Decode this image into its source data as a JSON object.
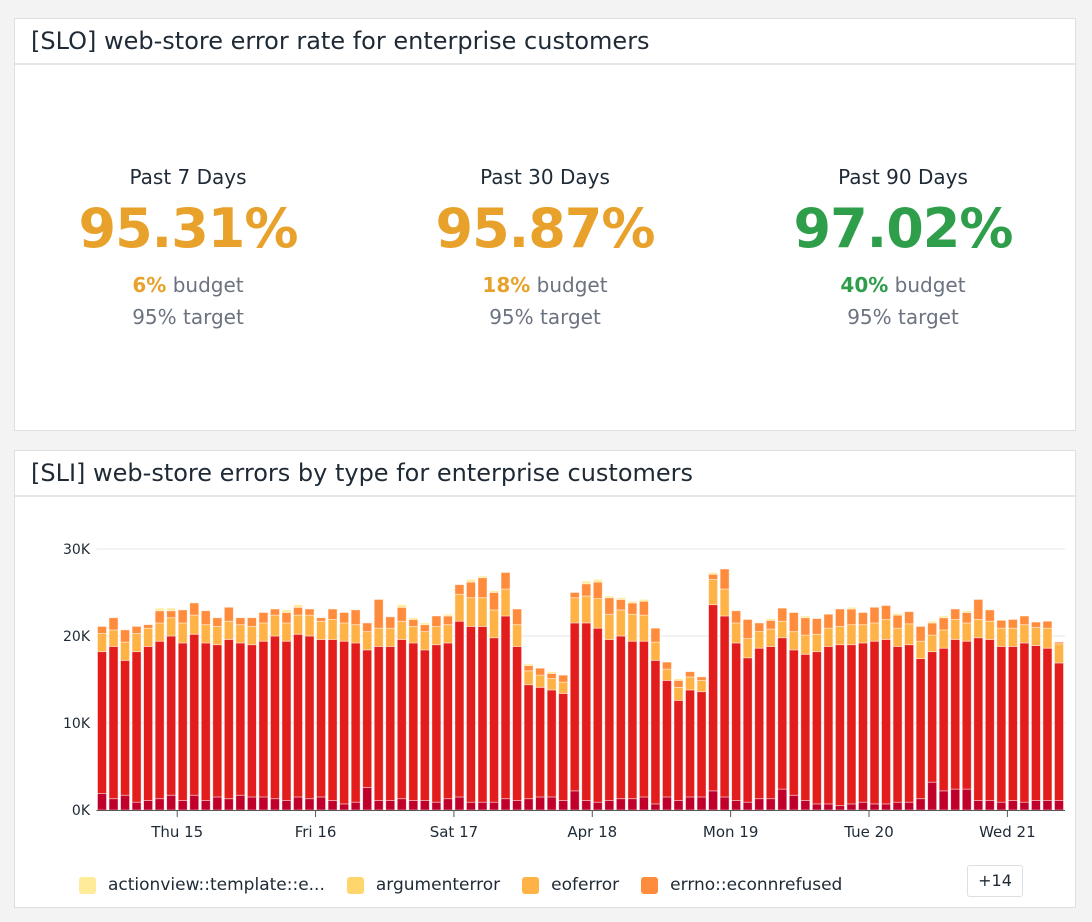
{
  "slo_panel": {
    "title": "[SLO] web-store error rate for enterprise customers",
    "stats": [
      {
        "label": "Past 7 Days",
        "value": "95.31%",
        "budget_value": "6%",
        "budget_label": "budget",
        "target": "95% target",
        "color": "#e8a22c"
      },
      {
        "label": "Past 30 Days",
        "value": "95.87%",
        "budget_value": "18%",
        "budget_label": "budget",
        "target": "95% target",
        "color": "#e8a22c"
      },
      {
        "label": "Past 90 Days",
        "value": "97.02%",
        "budget_value": "40%",
        "budget_label": "budget",
        "target": "95% target",
        "color": "#2f9e4b"
      }
    ]
  },
  "sli_panel": {
    "title": "[SLI] web-store errors by type for enterprise customers",
    "legend": [
      {
        "name": "actionview::template::e...",
        "color": "#ffeb99"
      },
      {
        "name": "argumenterror",
        "color": "#ffd66b"
      },
      {
        "name": "eoferror",
        "color": "#ffb347"
      },
      {
        "name": "errno::econnrefused",
        "color": "#ff8c3c"
      }
    ],
    "more_label": "+14"
  },
  "chart_data": {
    "type": "bar",
    "stacked": true,
    "ylim": [
      0,
      30
    ],
    "y_unit": "K",
    "yticks": [
      {
        "value": 0,
        "label": "0K"
      },
      {
        "value": 10,
        "label": "10K"
      },
      {
        "value": 20,
        "label": "20K"
      },
      {
        "value": 30,
        "label": "30K"
      }
    ],
    "grid": true,
    "legend_position": "bottom",
    "xticks": [
      {
        "label": "Thu 15",
        "x": "Apr 15 00:00"
      },
      {
        "label": "Fri 16",
        "x": "Apr 16 00:00"
      },
      {
        "label": "Sat 17",
        "x": "Apr 17 00:00"
      },
      {
        "label": "Apr 18",
        "x": "Apr 18 00:00"
      },
      {
        "label": "Mon 19",
        "x": "Apr 19 00:00"
      },
      {
        "label": "Tue 20",
        "x": "Apr 20 00:00"
      },
      {
        "label": "Wed 21",
        "x": "Apr 21 00:00"
      }
    ],
    "x": [
      "Apr 14 10:00",
      "Apr 14 12:00",
      "Apr 14 14:00",
      "Apr 14 16:00",
      "Apr 14 18:00",
      "Apr 14 20:00",
      "Apr 14 22:00",
      "Apr 15 00:00",
      "Apr 15 02:00",
      "Apr 15 04:00",
      "Apr 15 06:00",
      "Apr 15 08:00",
      "Apr 15 10:00",
      "Apr 15 12:00",
      "Apr 15 14:00",
      "Apr 15 16:00",
      "Apr 15 18:00",
      "Apr 15 20:00",
      "Apr 15 22:00",
      "Apr 16 00:00",
      "Apr 16 02:00",
      "Apr 16 04:00",
      "Apr 16 06:00",
      "Apr 16 08:00",
      "Apr 16 10:00",
      "Apr 16 12:00",
      "Apr 16 14:00",
      "Apr 16 16:00",
      "Apr 16 18:00",
      "Apr 16 20:00",
      "Apr 16 22:00",
      "Apr 17 00:00",
      "Apr 17 02:00",
      "Apr 17 04:00",
      "Apr 17 06:00",
      "Apr 17 08:00",
      "Apr 17 10:00",
      "Apr 17 12:00",
      "Apr 17 14:00",
      "Apr 17 16:00",
      "Apr 17 18:00",
      "Apr 17 20:00",
      "Apr 17 22:00",
      "Apr 18 00:00",
      "Apr 18 02:00",
      "Apr 18 04:00",
      "Apr 18 06:00",
      "Apr 18 08:00",
      "Apr 18 10:00",
      "Apr 18 12:00",
      "Apr 18 14:00",
      "Apr 18 16:00",
      "Apr 18 18:00",
      "Apr 18 20:00",
      "Apr 18 22:00",
      "Apr 19 00:00",
      "Apr 19 02:00",
      "Apr 19 04:00",
      "Apr 19 06:00",
      "Apr 19 08:00",
      "Apr 19 10:00",
      "Apr 19 12:00",
      "Apr 19 14:00",
      "Apr 19 16:00",
      "Apr 19 18:00",
      "Apr 19 20:00",
      "Apr 19 22:00",
      "Apr 20 00:00",
      "Apr 20 02:00",
      "Apr 20 04:00",
      "Apr 20 06:00",
      "Apr 20 08:00",
      "Apr 20 10:00",
      "Apr 20 12:00",
      "Apr 20 14:00",
      "Apr 20 16:00",
      "Apr 20 18:00",
      "Apr 20 20:00",
      "Apr 20 22:00",
      "Apr 21 00:00",
      "Apr 21 02:00",
      "Apr 21 04:00",
      "Apr 21 06:00",
      "Apr 21 08:00"
    ],
    "series": [
      {
        "color": "#c0002a",
        "values": [
          1.9,
          1.3,
          1.7,
          0.9,
          1.1,
          1.3,
          1.7,
          1.1,
          1.7,
          1.1,
          1.5,
          1.3,
          1.7,
          1.5,
          1.5,
          1.3,
          1.1,
          1.5,
          1.3,
          1.5,
          1.1,
          0.7,
          0.9,
          2.6,
          1.1,
          1.1,
          1.3,
          1.1,
          1.1,
          0.9,
          1.3,
          1.5,
          0.9,
          0.9,
          0.9,
          1.3,
          1.1,
          1.3,
          1.5,
          1.5,
          1.1,
          2.2,
          1.1,
          0.9,
          1.1,
          1.3,
          1.3,
          1.5,
          0.7,
          1.5,
          1.1,
          1.5,
          1.5,
          2.2,
          1.5,
          1.1,
          0.9,
          1.3,
          1.3,
          2.4,
          1.7,
          1.1,
          0.7,
          0.7,
          0.5,
          0.7,
          0.9,
          0.7,
          0.7,
          0.9,
          0.9,
          1.3,
          3.2,
          2.2,
          2.4,
          2.4,
          1.1,
          1.1,
          0.9,
          1.1,
          0.9,
          1.1,
          1.1,
          1.1
        ]
      },
      {
        "color": "#e31c1c",
        "values": [
          16.3,
          17.5,
          15.5,
          17.3,
          17.7,
          18.1,
          18.3,
          18.1,
          18.5,
          18.1,
          17.5,
          18.3,
          17.5,
          17.5,
          17.9,
          18.7,
          18.3,
          18.7,
          18.7,
          18.1,
          18.5,
          18.7,
          18.3,
          15.8,
          17.7,
          17.7,
          18.3,
          18.1,
          17.3,
          18.1,
          17.9,
          20.2,
          20.2,
          20.2,
          18.9,
          21.0,
          17.7,
          13.1,
          12.6,
          12.3,
          12.3,
          19.3,
          20.4,
          20.0,
          18.5,
          18.7,
          18.1,
          17.9,
          16.5,
          13.4,
          11.5,
          12.3,
          12.1,
          21.4,
          20.8,
          18.1,
          16.6,
          17.3,
          17.5,
          17.4,
          16.7,
          16.8,
          17.5,
          18.1,
          18.5,
          18.3,
          18.3,
          18.7,
          18.9,
          17.9,
          18.1,
          16.1,
          15.0,
          16.4,
          17.2,
          17.0,
          18.7,
          18.5,
          17.9,
          17.7,
          18.3,
          17.8,
          17.5,
          15.8
        ]
      },
      {
        "name": "eoferror",
        "color": "#ffb347",
        "values": [
          2.1,
          1.9,
          2.1,
          2.1,
          2.1,
          2.1,
          2.1,
          2.3,
          2.2,
          2.1,
          2.1,
          2.1,
          2.1,
          2.1,
          2.1,
          2.4,
          2.1,
          2.2,
          2.4,
          2.1,
          2.3,
          2.1,
          2.1,
          2.1,
          2.1,
          2.1,
          2.1,
          1.9,
          2.1,
          2.1,
          2.1,
          3.1,
          3.3,
          3.3,
          3.2,
          3.1,
          2.5,
          1.6,
          1.4,
          1.3,
          1.3,
          2.9,
          3.1,
          3.4,
          2.9,
          3.0,
          3.1,
          3.0,
          2.1,
          1.3,
          1.5,
          1.5,
          1.3,
          2.9,
          3.1,
          2.3,
          2.2,
          1.9,
          2.0,
          1.9,
          2.1,
          2.2,
          2.0,
          2.1,
          2.1,
          2.3,
          2.1,
          2.1,
          2.3,
          2.1,
          2.4,
          2.0,
          1.9,
          2.1,
          2.3,
          2.1,
          2.1,
          2.1,
          2.1,
          2.1,
          2.1,
          2.1,
          2.3,
          2.2
        ]
      },
      {
        "name": "errno::econnrefused",
        "color": "#ff8c3c",
        "values": [
          0.8,
          1.4,
          1.4,
          0.8,
          0.4,
          1.4,
          0.8,
          1.5,
          1.4,
          1.6,
          1.0,
          1.6,
          0.8,
          1.0,
          1.2,
          0.7,
          1.2,
          0.9,
          0.7,
          0.4,
          1.2,
          1.2,
          1.7,
          1.0,
          3.3,
          1.3,
          1.6,
          0.8,
          0.8,
          1.2,
          1.0,
          1.1,
          1.8,
          2.3,
          2.0,
          1.9,
          1.8,
          0.6,
          0.8,
          0.6,
          0.8,
          0.6,
          1.4,
          1.9,
          1.9,
          1.2,
          1.3,
          1.6,
          1.6,
          0.8,
          0.8,
          0.6,
          0.4,
          0.6,
          2.3,
          1.4,
          2.2,
          1.0,
          1.0,
          1.5,
          2.2,
          2.0,
          1.8,
          1.6,
          2.0,
          1.8,
          1.4,
          1.8,
          1.6,
          1.5,
          1.4,
          1.7,
          1.4,
          1.4,
          1.2,
          1.2,
          2.3,
          1.3,
          0.9,
          1.0,
          1.0,
          0.6,
          0.8,
          0.2
        ]
      },
      {
        "name": "actionview::template::e...",
        "color": "#ffeb99",
        "values": [
          0,
          0,
          0,
          0,
          0,
          0.3,
          0.3,
          0,
          0,
          0,
          0,
          0,
          0,
          0,
          0,
          0,
          0.3,
          0.3,
          0,
          0,
          0,
          0,
          0,
          0,
          0,
          0,
          0.3,
          0.2,
          0.2,
          0,
          0.2,
          0,
          0.3,
          0.2,
          0.2,
          0,
          0,
          0.2,
          0,
          0.2,
          0,
          0,
          0.3,
          0.3,
          0.2,
          0.2,
          0.2,
          0.2,
          0,
          0,
          0.2,
          0,
          0,
          0.2,
          0,
          0,
          0,
          0,
          0.2,
          0,
          0,
          0.2,
          0,
          0,
          0,
          0.2,
          0,
          0,
          0,
          0.2,
          0,
          0,
          0.2,
          0.2,
          0,
          0.2,
          0,
          0,
          0,
          0,
          0,
          0,
          0,
          0
        ]
      }
    ]
  }
}
